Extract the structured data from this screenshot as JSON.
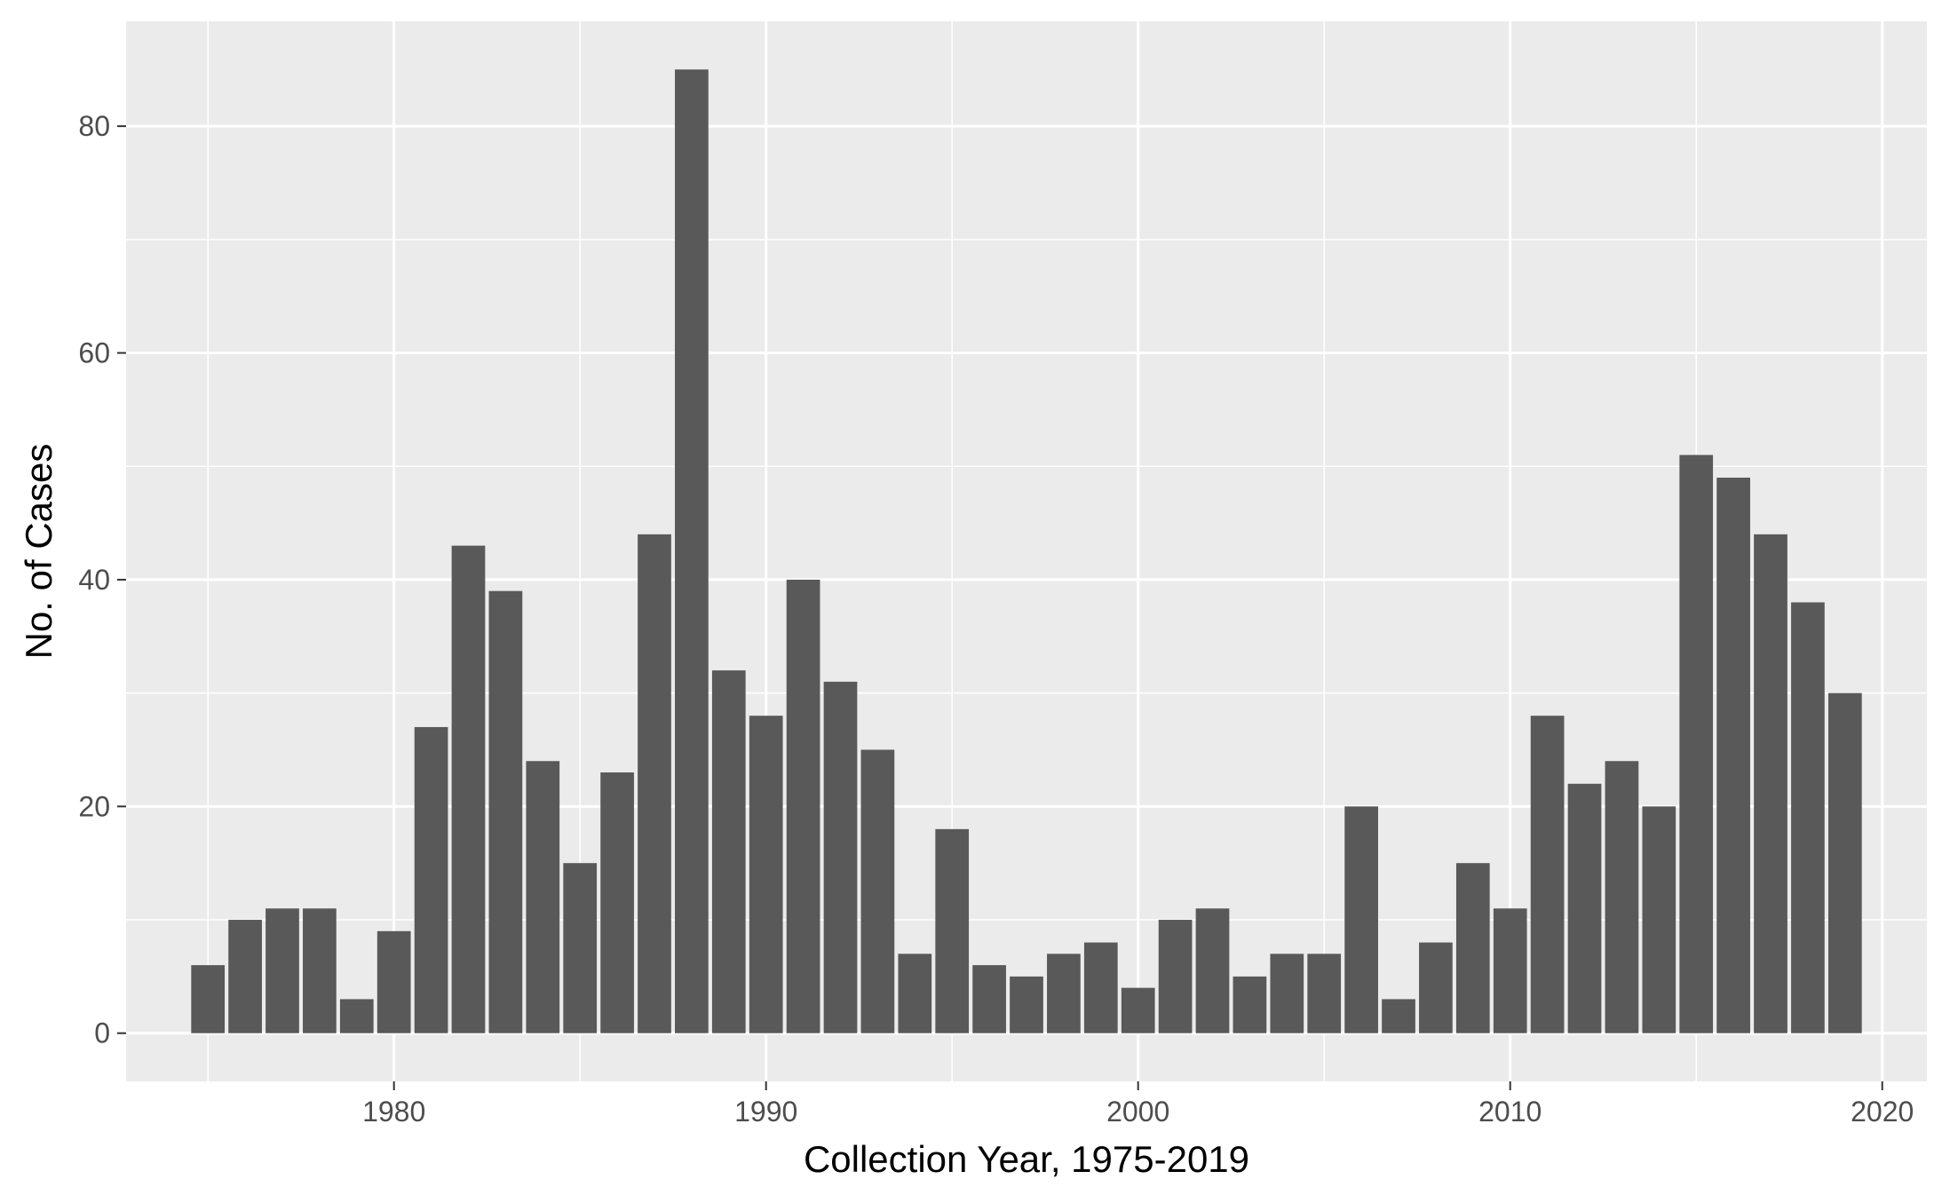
{
  "chart_data": {
    "type": "bar",
    "title": "",
    "xlabel": "Collection Year, 1975-2019",
    "ylabel": "No. of Cases",
    "xlim": [
      1972.8,
      2021.2
    ],
    "ylim": [
      -4.25,
      89.25
    ],
    "xticks": [
      1980,
      1990,
      2000,
      2010,
      2020
    ],
    "yticks": [
      0,
      20,
      40,
      60,
      80
    ],
    "grid": true,
    "legend": "none",
    "colors": {
      "bar": "#595959",
      "panel": "#ebebeb",
      "grid": "#ffffff"
    },
    "categories": [
      1975,
      1976,
      1977,
      1978,
      1979,
      1980,
      1981,
      1982,
      1983,
      1984,
      1985,
      1986,
      1987,
      1988,
      1989,
      1990,
      1991,
      1992,
      1993,
      1994,
      1995,
      1996,
      1997,
      1998,
      1999,
      2000,
      2001,
      2002,
      2003,
      2004,
      2005,
      2006,
      2007,
      2008,
      2009,
      2010,
      2011,
      2012,
      2013,
      2014,
      2015,
      2016,
      2017,
      2018,
      2019
    ],
    "values": [
      6,
      10,
      11,
      11,
      3,
      9,
      27,
      43,
      39,
      24,
      15,
      23,
      44,
      85,
      32,
      28,
      40,
      31,
      25,
      7,
      18,
      6,
      5,
      7,
      8,
      4,
      10,
      11,
      5,
      7,
      7,
      20,
      3,
      8,
      15,
      11,
      28,
      22,
      24,
      20,
      51,
      49,
      44,
      38,
      30
    ]
  }
}
